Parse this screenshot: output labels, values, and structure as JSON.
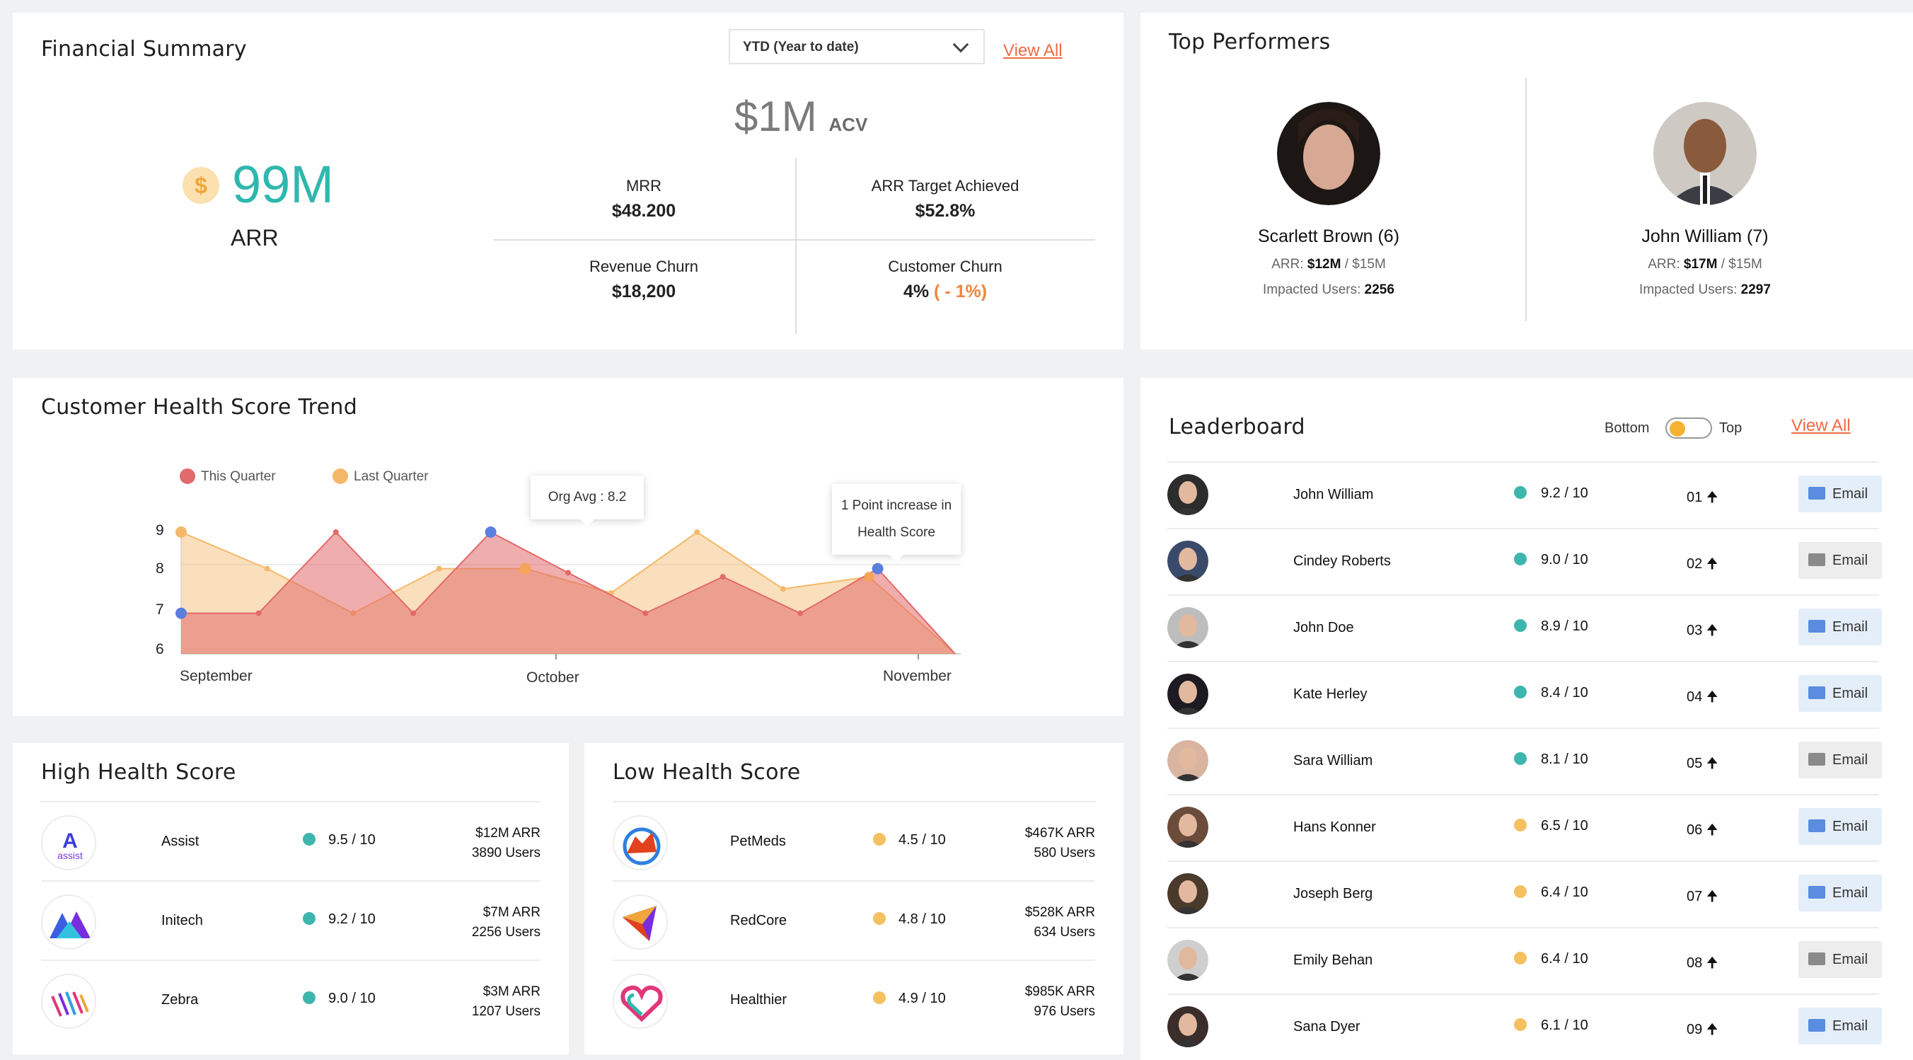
{
  "financial": {
    "title": "Financial Summary",
    "period": "YTD (Year to date)",
    "view_all": "View All",
    "acv_value": "$1M",
    "acv_label": "ACV",
    "arr_value": "99M",
    "arr_symbol": "$",
    "arr_label": "ARR",
    "mrr_label": "MRR",
    "mrr_value": "$48.200",
    "target_label": "ARR Target Achieved",
    "target_value": "$52.8%",
    "churn_label": "Revenue Churn",
    "churn_value": "$18,200",
    "cust_churn_label": "Customer Churn",
    "cust_churn_value": "4%",
    "cust_churn_delta": "( - 1%)"
  },
  "top_performers": {
    "title": "Top Performers",
    "people": [
      {
        "name": "Scarlett Brown (6)",
        "arr_label": "ARR:",
        "arr_value": "$12M",
        "arr_target": "/ $15M",
        "users_label": "Impacted Users:",
        "users": "2256"
      },
      {
        "name": "John William (7)",
        "arr_label": "ARR:",
        "arr_value": "$17M",
        "arr_target": "/ $15M",
        "users_label": "Impacted Users:",
        "users": "2297"
      }
    ]
  },
  "trend": {
    "title": "Customer Health Score Trend",
    "legend_this": "This Quarter",
    "legend_last": "Last Quarter",
    "tip_avg": "Org Avg : 8.2",
    "tip_inc_1": "1 Point increase in",
    "tip_inc_2": "Health Score",
    "colors": {
      "this": "#e26a6a",
      "last": "#f5b86a",
      "marker": "#5b7fe0"
    }
  },
  "chart_data": {
    "type": "area",
    "x_labels": [
      "September",
      "October",
      "November"
    ],
    "yticks": [
      "9",
      "8",
      "7",
      "6"
    ],
    "ylim": [
      6,
      9
    ],
    "series": [
      {
        "name": "This Quarter",
        "values": [
          7,
          7,
          9,
          7,
          9,
          8,
          7,
          7.9,
          7,
          8.1,
          6
        ]
      },
      {
        "name": "Last Quarter",
        "values": [
          9,
          8.1,
          7,
          8.1,
          8.1,
          7.5,
          9,
          7.6,
          7.9,
          6
        ]
      }
    ]
  },
  "high": {
    "title": "High Health Score",
    "rows": [
      {
        "name": "Assist",
        "score": "9.5 / 10",
        "arr": "$12M ARR",
        "users": "3890 Users"
      },
      {
        "name": "Initech",
        "score": "9.2 / 10",
        "arr": "$7M ARR",
        "users": "2256 Users"
      },
      {
        "name": "Zebra",
        "score": "9.0 / 10",
        "arr": "$3M ARR",
        "users": "1207 Users"
      }
    ]
  },
  "low": {
    "title": "Low Health Score",
    "rows": [
      {
        "name": "PetMeds",
        "score": "4.5 / 10",
        "arr": "$467K ARR",
        "users": "580 Users"
      },
      {
        "name": "RedCore",
        "score": "4.8 / 10",
        "arr": "$528K ARR",
        "users": "634 Users"
      },
      {
        "name": "Healthier",
        "score": "4.9 / 10",
        "arr": "$985K ARR",
        "users": "976 Users"
      }
    ]
  },
  "leaderboard": {
    "title": "Leaderboard",
    "bottom": "Bottom",
    "top": "Top",
    "view_all": "View All",
    "email": "Email",
    "rows": [
      {
        "name": "John William",
        "score": "9.2 / 10",
        "rank": "01"
      },
      {
        "name": "Cindey Roberts",
        "score": "9.0 / 10",
        "rank": "02"
      },
      {
        "name": "John Doe",
        "score": "8.9 / 10",
        "rank": "03"
      },
      {
        "name": "Kate Herley",
        "score": "8.4 / 10",
        "rank": "04"
      },
      {
        "name": "Sara William",
        "score": "8.1 / 10",
        "rank": "05"
      },
      {
        "name": "Hans Konner",
        "score": "6.5 / 10",
        "rank": "06"
      },
      {
        "name": "Joseph Berg",
        "score": "6.4 / 10",
        "rank": "07"
      },
      {
        "name": "Emily Behan",
        "score": "6.4 / 10",
        "rank": "08"
      },
      {
        "name": "Sana Dyer",
        "score": "6.1 / 10",
        "rank": "09"
      }
    ]
  }
}
